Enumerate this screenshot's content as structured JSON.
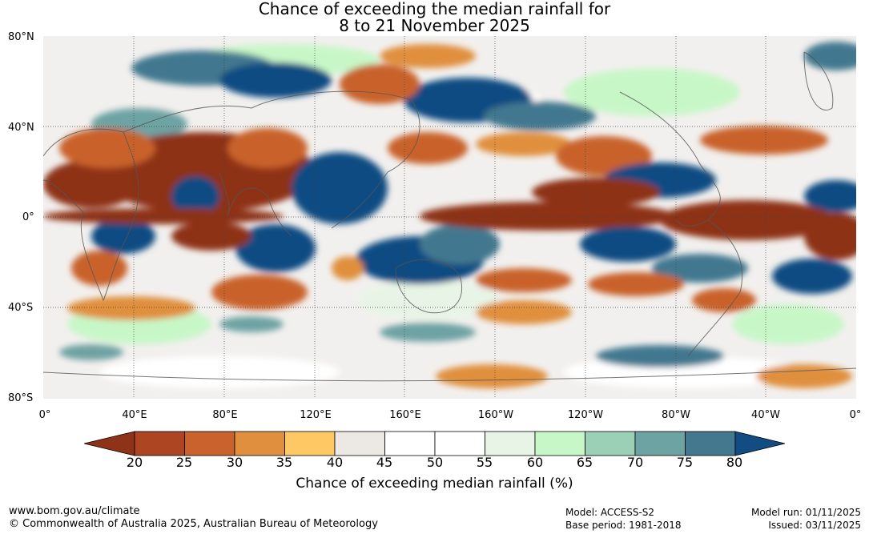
{
  "title_line1": "Chance of exceeding the median rainfall for",
  "title_line2": "8 to 21 November 2025",
  "lat_labels": [
    "80°N",
    "40°N",
    "0°",
    "40°S",
    "80°S"
  ],
  "lon_labels": [
    "0°",
    "40°E",
    "80°E",
    "120°E",
    "160°E",
    "160°W",
    "120°W",
    "80°W",
    "40°W",
    "0°"
  ],
  "colorbar": {
    "ticks": [
      "20",
      "25",
      "30",
      "35",
      "40",
      "45",
      "50",
      "55",
      "60",
      "65",
      "70",
      "75",
      "80"
    ],
    "colors": [
      "#8e3218",
      "#ad4522",
      "#c9622c",
      "#e08f3e",
      "#fec865",
      "#ece8e4",
      "#ffffff",
      "#ffffff",
      "#e8f5e6",
      "#c8f7c7",
      "#9bcfb6",
      "#6ea3a3",
      "#43788f",
      "#114c82"
    ],
    "label": "Chance of exceeding median rainfall (%)"
  },
  "footer": {
    "website": "www.bom.gov.au/climate",
    "copyright": "© Commonwealth of Australia 2025, Australian Bureau of Meteorology",
    "model": "Model: ACCESS-S2",
    "base_period": "Base period: 1981-2018",
    "model_run": "Model run: 01/11/2025",
    "issued": "Issued: 03/11/2025"
  }
}
